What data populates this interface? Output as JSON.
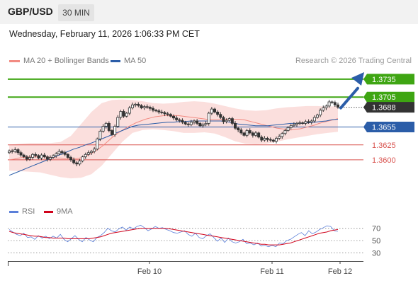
{
  "header": {
    "symbol": "GBP/USD",
    "timeframe": "30 MIN"
  },
  "timestamp": "Wednesday, February 11, 2026 1:06:33 PM CET",
  "legend": {
    "items": [
      {
        "label": "MA 20 + Bollinger Bands",
        "color": "#f28b82"
      },
      {
        "label": "MA 50",
        "color": "#2b5da8"
      }
    ],
    "copyright": "Research © 2026 Trading Central"
  },
  "rsi_legend": {
    "items": [
      {
        "label": "RSI",
        "color": "#5b7fd9"
      },
      {
        "label": "9MA",
        "color": "#d0021b"
      }
    ]
  },
  "colors": {
    "resistance": "#3ea512",
    "pivot": "#2b5da8",
    "support": "#d9534f",
    "candle": "#333333",
    "arrow": "#2b5da8",
    "price_tag": "#333333"
  },
  "chart_data": {
    "type": "candlestick",
    "ylim": [
      1.353,
      1.3755
    ],
    "levels": [
      {
        "value": "1.3735",
        "kind": "resistance"
      },
      {
        "value": "1.3705",
        "kind": "resistance"
      },
      {
        "value": "1.3688",
        "kind": "last"
      },
      {
        "value": "1.3655",
        "kind": "pivot"
      },
      {
        "value": "1.3625",
        "kind": "support"
      },
      {
        "value": "1.3600",
        "kind": "support"
      }
    ],
    "x_ticks": [
      "Feb 10",
      "Feb 11",
      "Feb 12"
    ],
    "close": [
      1.3615,
      1.3614,
      1.3617,
      1.3612,
      1.3608,
      1.3605,
      1.3601,
      1.3604,
      1.3609,
      1.3607,
      1.3603,
      1.3608,
      1.3605,
      1.3601,
      1.3604,
      1.3607,
      1.361,
      1.3614,
      1.3612,
      1.3609,
      1.3604,
      1.36,
      1.3595,
      1.3593,
      1.3598,
      1.3605,
      1.3609,
      1.3612,
      1.3614,
      1.3618,
      1.3635,
      1.3648,
      1.3656,
      1.3661,
      1.3649,
      1.3642,
      1.3656,
      1.3671,
      1.3681,
      1.3673,
      1.3678,
      1.3687,
      1.3692,
      1.3693,
      1.3691,
      1.3687,
      1.3689,
      1.3688,
      1.3686,
      1.3683,
      1.3682,
      1.368,
      1.3679,
      1.3677,
      1.3676,
      1.3673,
      1.367,
      1.3667,
      1.3666,
      1.3663,
      1.366,
      1.3659,
      1.3663,
      1.3665,
      1.3661,
      1.3657,
      1.3659,
      1.3661,
      1.3678,
      1.3685,
      1.368,
      1.3676,
      1.3671,
      1.3664,
      1.3666,
      1.3669,
      1.3661,
      1.3653,
      1.365,
      1.3645,
      1.3641,
      1.3649,
      1.3645,
      1.3641,
      1.3645,
      1.3638,
      1.3633,
      1.3636,
      1.3634,
      1.3633,
      1.3631,
      1.3636,
      1.3639,
      1.3644,
      1.3649,
      1.3654,
      1.3657,
      1.3659,
      1.3661,
      1.3662,
      1.3661,
      1.3664,
      1.3663,
      1.3665,
      1.3671,
      1.3675,
      1.3683,
      1.3687,
      1.369,
      1.3697,
      1.3696,
      1.3692,
      1.3688
    ],
    "ma20": [
      1.36,
      1.3601,
      1.3603,
      1.3604,
      1.3605,
      1.3605,
      1.3605,
      1.3605,
      1.3605,
      1.3604,
      1.3603,
      1.3603,
      1.3602,
      1.3602,
      1.3602,
      1.3603,
      1.3605,
      1.3609,
      1.3613,
      1.3618,
      1.3624,
      1.3631,
      1.3638,
      1.3644,
      1.3649,
      1.3654,
      1.3658,
      1.3662,
      1.3665,
      1.3668,
      1.367,
      1.3672,
      1.3673,
      1.3674,
      1.3674,
      1.3674,
      1.3674,
      1.3673,
      1.3672,
      1.3671,
      1.367,
      1.3669,
      1.3668,
      1.3667,
      1.3667,
      1.3667,
      1.3668,
      1.3668,
      1.3668,
      1.3668,
      1.3667,
      1.3665,
      1.3663,
      1.3661,
      1.3659,
      1.3657,
      1.3655,
      1.3653,
      1.3652,
      1.3651,
      1.365,
      1.3651,
      1.3652,
      1.3654,
      1.3656,
      1.3658,
      1.3661,
      1.3663,
      1.3665,
      1.3667,
      1.3669
    ],
    "ma50": [
      1.3574,
      1.3578,
      1.3582,
      1.3586,
      1.359,
      1.3594,
      1.3598,
      1.3602,
      1.3606,
      1.361,
      1.3614,
      1.3618,
      1.3621,
      1.3625,
      1.3628,
      1.3632,
      1.3636,
      1.364,
      1.3644,
      1.3648,
      1.3652,
      1.3656,
      1.3658,
      1.3659,
      1.366,
      1.3661,
      1.3662,
      1.3663,
      1.3663,
      1.3664,
      1.3664,
      1.3665,
      1.3665,
      1.3665,
      1.3665,
      1.3665,
      1.3665,
      1.3664,
      1.3662,
      1.366,
      1.3659,
      1.3658,
      1.3657,
      1.3657,
      1.3657,
      1.3658,
      1.3659,
      1.366,
      1.3661,
      1.3661,
      1.3661,
      1.3662,
      1.3663,
      1.3664,
      1.3665,
      1.3667,
      1.3668
    ],
    "bb_upper": [
      1.3625,
      1.3627,
      1.3628,
      1.3628,
      1.3628,
      1.363,
      1.364,
      1.366,
      1.368,
      1.3695,
      1.37,
      1.3701,
      1.37,
      1.3698,
      1.3695,
      1.3694,
      1.3695,
      1.3697,
      1.3698,
      1.3697,
      1.3694,
      1.369,
      1.3686,
      1.3683,
      1.3682,
      1.3683,
      1.3686,
      1.3688,
      1.3689,
      1.369,
      1.369,
      1.3689,
      1.369
    ],
    "bb_lower": [
      1.3582,
      1.3581,
      1.358,
      1.3579,
      1.3575,
      1.3571,
      1.3569,
      1.357,
      1.3576,
      1.359,
      1.361,
      1.363,
      1.3645,
      1.365,
      1.3651,
      1.365,
      1.3648,
      1.3645,
      1.3645,
      1.3646,
      1.3644,
      1.3638,
      1.3631,
      1.3627,
      1.3626,
      1.3627,
      1.363,
      1.3634,
      1.3637,
      1.364,
      1.3643,
      1.3645,
      1.3647
    ],
    "rsi": {
      "ylim": [
        20,
        80
      ],
      "ticks": [
        "70",
        "50",
        "30"
      ],
      "rsi": [
        68,
        64,
        60,
        58,
        62,
        55,
        56,
        52,
        58,
        54,
        57,
        53,
        57,
        54,
        60,
        52,
        48,
        53,
        58,
        52,
        48,
        55,
        51,
        48,
        55,
        58,
        63,
        70,
        66,
        64,
        69,
        72,
        67,
        72,
        69,
        73,
        75,
        71,
        66,
        69,
        73,
        70,
        71,
        68,
        66,
        63,
        62,
        64,
        66,
        60,
        57,
        62,
        55,
        53,
        58,
        61,
        55,
        49,
        54,
        47,
        54,
        48,
        46,
        48,
        52,
        45,
        46,
        43,
        46,
        41,
        42,
        40,
        42,
        40,
        46,
        45,
        50,
        52,
        56,
        60,
        63,
        58,
        66,
        61,
        64,
        68,
        71,
        74,
        73,
        66,
        65
      ],
      "ma9": [
        65,
        63,
        62,
        61,
        60,
        59,
        58,
        57,
        57,
        56,
        55,
        55,
        54,
        54,
        54,
        54,
        53,
        53,
        53,
        53,
        53,
        53,
        53,
        54,
        55,
        56,
        58,
        60,
        62,
        63,
        64,
        65,
        66,
        67,
        68,
        69,
        70,
        70,
        70,
        70,
        70,
        70,
        70,
        70,
        69,
        68,
        67,
        66,
        65,
        64,
        63,
        62,
        61,
        60,
        59,
        58,
        57,
        56,
        55,
        54,
        53,
        52,
        51,
        50,
        49,
        48,
        47,
        46,
        45,
        44,
        44,
        43,
        43,
        43,
        43,
        44,
        45,
        46,
        48,
        50,
        52,
        54,
        56,
        58,
        60,
        62,
        63,
        64,
        66,
        67,
        68
      ]
    }
  }
}
